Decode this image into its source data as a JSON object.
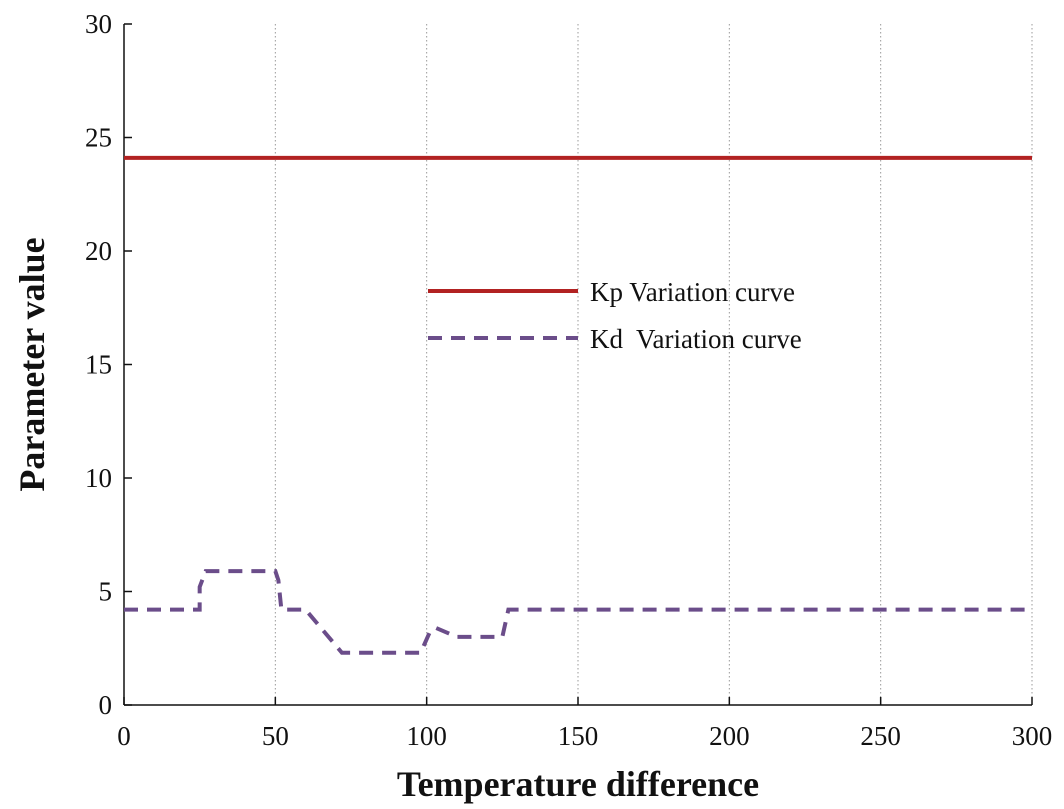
{
  "chart_data": {
    "type": "line",
    "title": "",
    "xlabel": "Temperature difference",
    "ylabel": "Parameter value",
    "xlim": [
      0,
      300
    ],
    "ylim": [
      0,
      30
    ],
    "xticks": [
      0,
      50,
      100,
      150,
      200,
      250,
      300
    ],
    "yticks": [
      0,
      5,
      10,
      15,
      20,
      25,
      30
    ],
    "grid": true,
    "legend_position": "center",
    "series": [
      {
        "name": "Kp Variation curve",
        "color": "#b22222",
        "style": "solid",
        "x": [
          0,
          300
        ],
        "y": [
          24.1,
          24.1
        ]
      },
      {
        "name": "Kd  Variation curve",
        "color": "#6b4d8a",
        "style": "dashed",
        "x": [
          0,
          25,
          25,
          27,
          50,
          51,
          52,
          60,
          72,
          98,
          101,
          103,
          110,
          125,
          127,
          300
        ],
        "y": [
          4.2,
          4.2,
          5.2,
          5.9,
          5.9,
          5.5,
          4.2,
          4.2,
          2.3,
          2.3,
          3.2,
          3.4,
          3.0,
          3.0,
          4.2,
          4.2
        ]
      }
    ]
  }
}
